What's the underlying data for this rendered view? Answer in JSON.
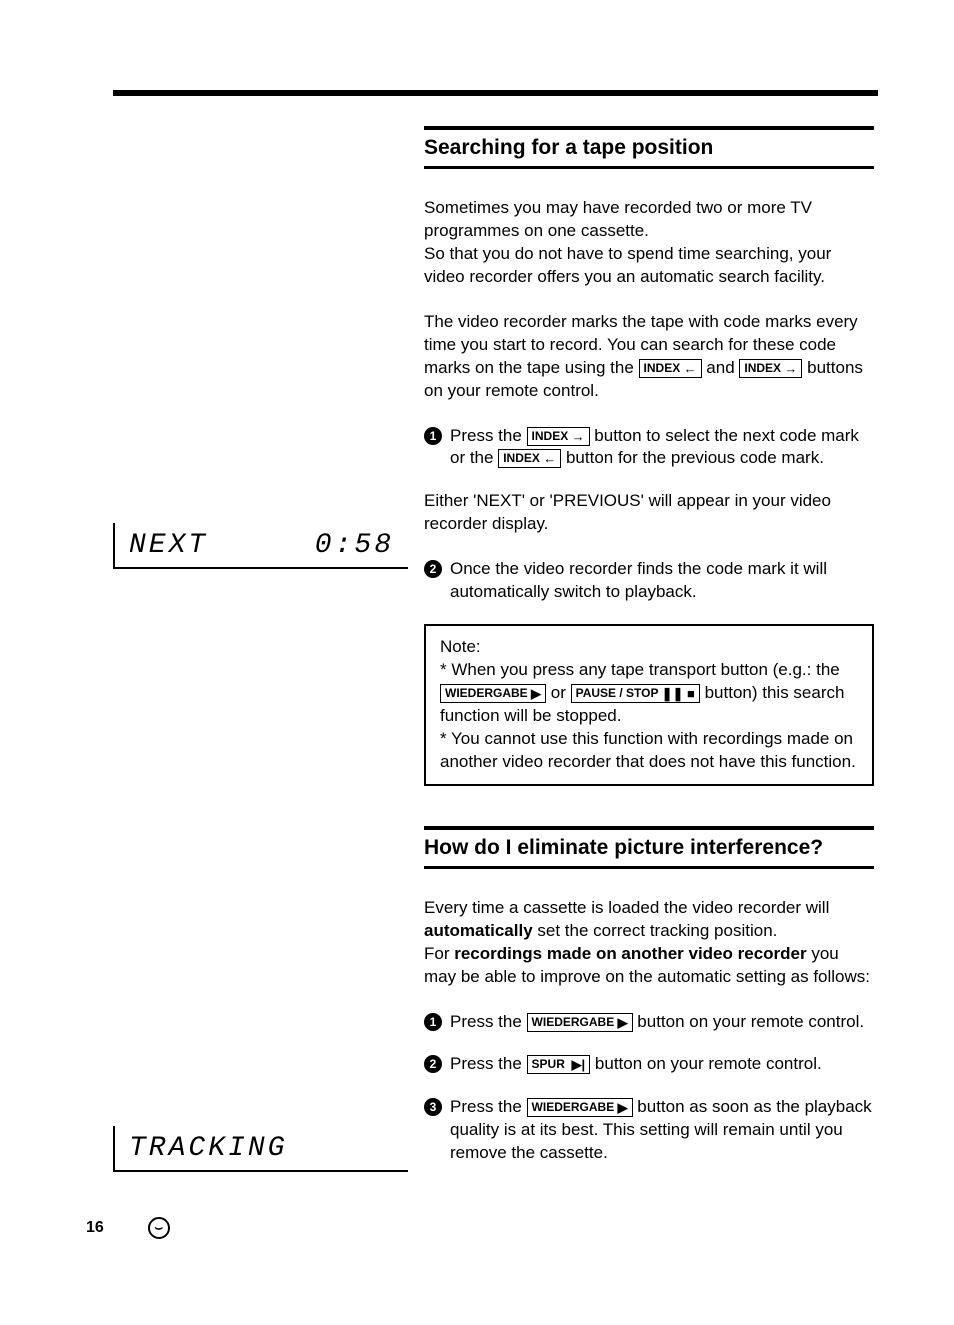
{
  "page_number": "16",
  "lcd": {
    "display1_left": "NEXT",
    "display1_right": "0:58",
    "display2": "TRACKING"
  },
  "section1": {
    "heading": "Searching for a tape position",
    "p1a": "Sometimes you may have recorded two or more TV programmes on one cassette.",
    "p1b": "So that you do not have to spend time searching, your video recorder offers you an automatic search facility.",
    "p2a": "The video recorder marks the tape with code marks every time you start to record. You can search for these code marks on the tape using the ",
    "p2b": " and ",
    "p2c": " buttons on your remote control.",
    "step1a": "Press the ",
    "step1b": " button to select the next code mark or the ",
    "step1c": " button for the previous code mark.",
    "p3": "Either 'NEXT' or 'PREVIOUS' will appear in your video recorder display.",
    "step2": "Once the video recorder finds the code mark it will automatically switch to playback.",
    "note_label": "Note:",
    "note1a": "* When you press any tape transport button (e.g.: the ",
    "note1b": " or ",
    "note1c": " button) this search function will be stopped.",
    "note2": "* You cannot use this function with recordings made on another video recorder that does not have this function."
  },
  "section2": {
    "heading": "How do I eliminate picture interference?",
    "p1a": "Every time a cassette is loaded the video recorder will ",
    "p1_bold1": "automatically",
    "p1b": " set the correct tracking position.",
    "p1c": "For ",
    "p1_bold2": "recordings made on another video recorder",
    "p1d": " you may be able to improve on the automatic setting as follows:",
    "step1a": "Press the ",
    "step1b": " button on your remote control.",
    "step2a": "Press the ",
    "step2b": " button on your remote control.",
    "step3a": "Press the ",
    "step3b": " button as soon as the playback quality is at its best. This setting will remain until you remove the cassette."
  },
  "buttons": {
    "index_back": "INDEX",
    "index_fwd": "INDEX",
    "wiedergabe": "WIEDERGABE",
    "pausestop": "PAUSE / STOP",
    "spur": "SPUR"
  },
  "bullets": {
    "n1": "1",
    "n2": "2",
    "n3": "3"
  }
}
